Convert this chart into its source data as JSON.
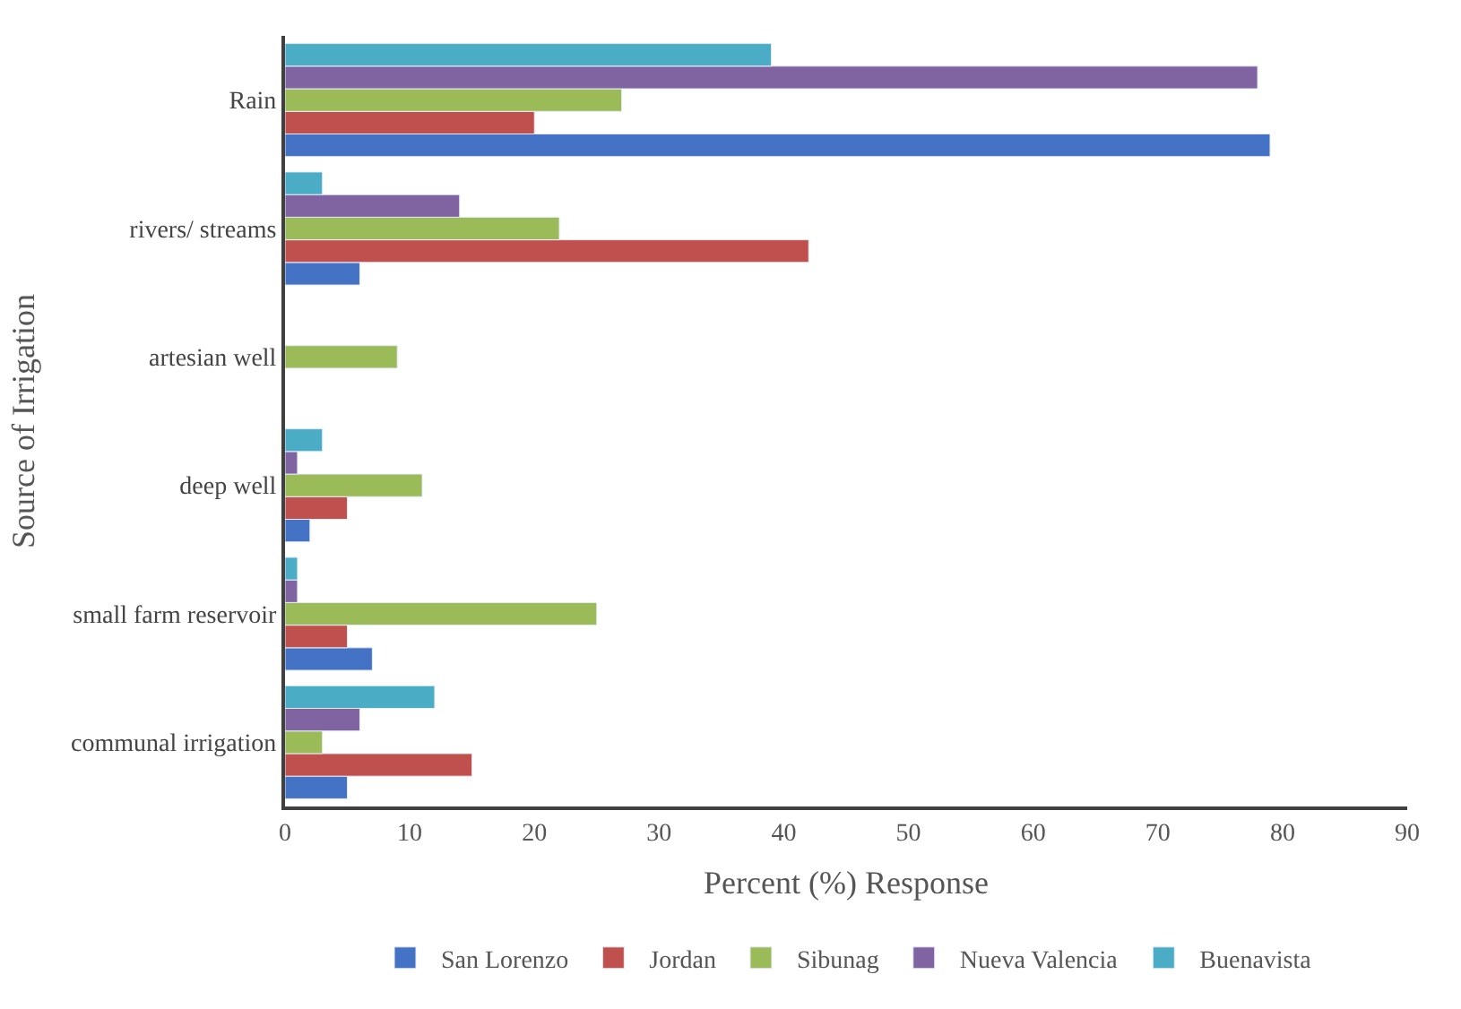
{
  "chart_data": {
    "type": "bar",
    "orientation": "horizontal",
    "xlabel": "Percent (%) Response",
    "ylabel": "Source of Irrigation",
    "categories": [
      "Rain",
      "rivers/ streams",
      "artesian well",
      "deep well",
      "small farm reservoir",
      "communal irrigation"
    ],
    "series": [
      {
        "name": "San Lorenzo",
        "color": "#4472c4",
        "values": [
          79,
          6,
          null,
          2,
          7,
          5
        ]
      },
      {
        "name": "Jordan",
        "color": "#c0504d",
        "values": [
          20,
          42,
          null,
          5,
          5,
          15
        ]
      },
      {
        "name": "Sibunag",
        "color": "#9bbb59",
        "values": [
          27,
          22,
          9,
          11,
          25,
          3
        ]
      },
      {
        "name": "Nueva Valencia",
        "color": "#8064a2",
        "values": [
          78,
          14,
          null,
          1,
          1,
          6
        ]
      },
      {
        "name": "Buenavista",
        "color": "#4bacc6",
        "values": [
          39,
          3,
          null,
          3,
          1,
          12
        ]
      }
    ],
    "xlim": [
      0,
      90
    ],
    "xticks": [
      0,
      10,
      20,
      30,
      40,
      50,
      60,
      70,
      80,
      90
    ],
    "legend": "bottom"
  }
}
